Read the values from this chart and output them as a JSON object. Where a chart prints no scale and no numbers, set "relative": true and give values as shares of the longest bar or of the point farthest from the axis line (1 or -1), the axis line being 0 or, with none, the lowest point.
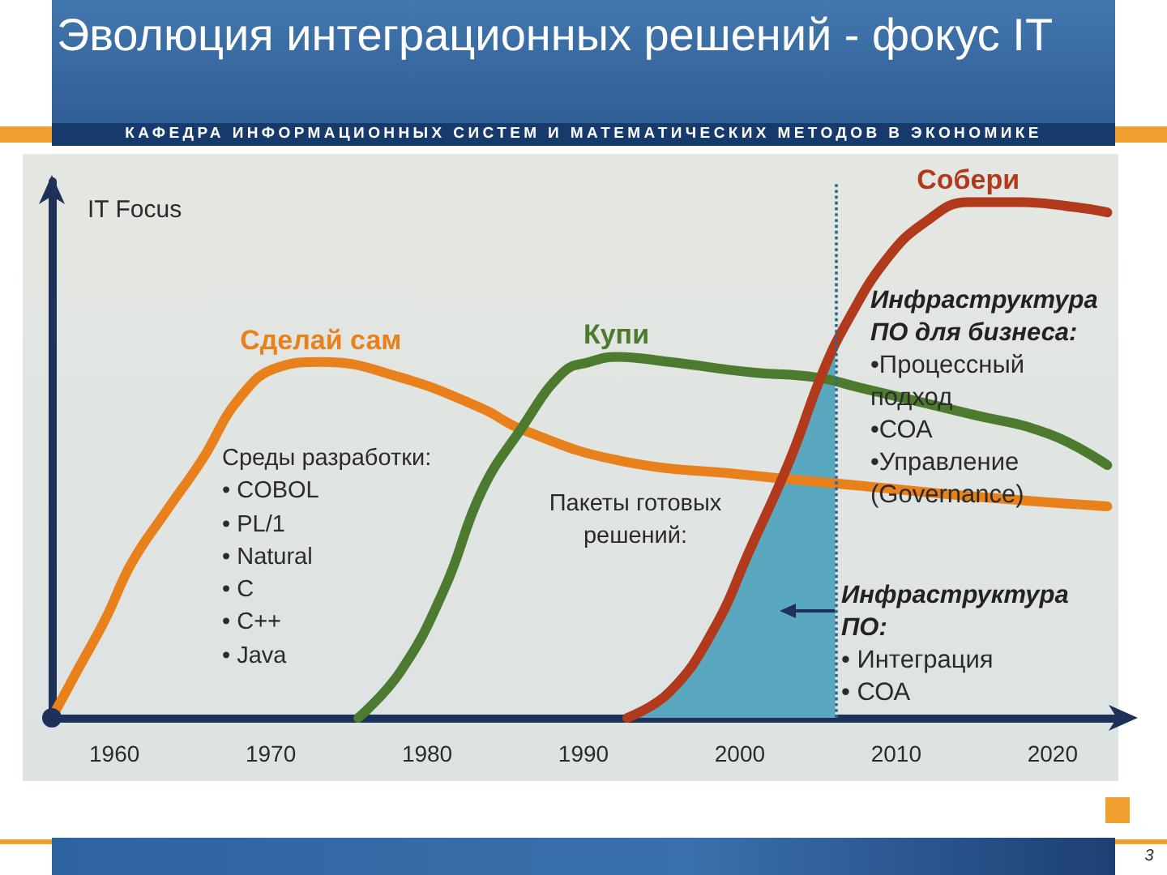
{
  "chart_data": {
    "type": "line",
    "title": "Эволюция интеграционных решений - фокус IT",
    "subtitle": "КАФЕДРА ИНФОРМАЦИОННЫХ СИСТЕМ И МАТЕМАТИЧЕСКИХ МЕТОДОВ В ЭКОНОМИКЕ",
    "ylabel": "IT Focus",
    "relative": true,
    "xlim": [
      1956,
      2024
    ],
    "xticks": [
      1960,
      1970,
      1980,
      1990,
      2000,
      2010,
      2020
    ],
    "marker": "none",
    "line_style": "solid",
    "series": [
      {
        "type": "area",
        "color": "#5aa8c0",
        "x": [
          1992.8,
          1995.5,
          1998.3,
          2000.7,
          2003.2,
          2005.3,
          2006.1
        ],
        "values": [
          0,
          0.05,
          0.17,
          0.33,
          0.5,
          0.67,
          0.72
        ]
      },
      {
        "name": "Сделай сам",
        "color": "#e8801c",
        "x": [
          1956,
          1957.6,
          1959.4,
          1961.1,
          1963.3,
          1965.6,
          1968,
          1970.5,
          1973.2,
          1978.3,
          1983.5,
          1986,
          1992.1,
          2000.7,
          2007.7,
          2014.6,
          2023.5
        ],
        "values": [
          0,
          0.09,
          0.19,
          0.3,
          0.4,
          0.5,
          0.62,
          0.68,
          0.69,
          0.66,
          0.6,
          0.56,
          0.5,
          0.47,
          0.45,
          0.43,
          0.41
        ]
      },
      {
        "name": "Купи",
        "color": "#4c7a2e",
        "x": [
          1975.6,
          1978.3,
          1981.1,
          1983.5,
          1986,
          1988.7,
          1990.4,
          1992.1,
          1995.5,
          2000.7,
          2004.9,
          2007.7,
          2014.6,
          2019.8,
          2023.5
        ],
        "values": [
          0,
          0.09,
          0.25,
          0.44,
          0.56,
          0.67,
          0.69,
          0.7,
          0.69,
          0.67,
          0.66,
          0.64,
          0.59,
          0.55,
          0.49
        ]
      },
      {
        "name": "Собери",
        "color": "#b23a1c",
        "x": [
          1992.8,
          1995.5,
          1998.3,
          2000.7,
          2003.2,
          2005.3,
          2006.9,
          2009.4,
          2011.8,
          2014.6,
          2018,
          2021.5,
          2023.5
        ],
        "values": [
          0,
          0.05,
          0.17,
          0.33,
          0.5,
          0.67,
          0.77,
          0.89,
          0.96,
          1,
          1,
          0.99,
          0.98
        ]
      }
    ],
    "ref_lines": [
      {
        "axis": "x",
        "value": 2006.1,
        "color": "#2b6a88",
        "line_style": "dotted"
      }
    ],
    "annotations": [
      "Среды разработки:\n• COBOL\n• PL/1\n• Natural\n• C\n• C++\n• Java",
      "Пакеты готовых решений:",
      "Инфраструктура ПО для бизнеса:\n•Процессный подход\n•СОА\n•Управление (Governance)",
      "Инфраструктура ПО:\n• Интеграция\n• СОА",
      "3"
    ]
  }
}
